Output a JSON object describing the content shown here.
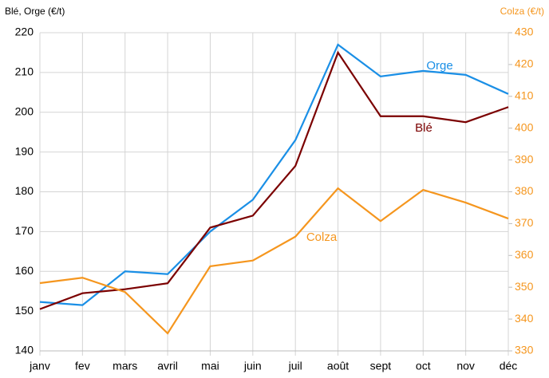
{
  "chart_data": {
    "type": "line",
    "y_label": "Blé, Orge (€/t)",
    "y2_label": "Colza (€/t)",
    "categories": [
      "janv",
      "fev",
      "mars",
      "avril",
      "mai",
      "juin",
      "juil",
      "août",
      "sept",
      "oct",
      "nov",
      "déc"
    ],
    "series": [
      {
        "name": "Orge",
        "color": "#1a8fe6",
        "values": [
          152.3,
          151.5,
          160,
          159.3,
          170,
          178,
          193,
          217,
          209,
          210.4,
          209.4,
          204.6
        ]
      },
      {
        "name": "Blé",
        "color": "#7b0000",
        "values": [
          150.5,
          154.5,
          155.5,
          157,
          171,
          174,
          186.5,
          215,
          199,
          199,
          197.5,
          201.3
        ]
      },
      {
        "name": "Colza",
        "color": "#f5961e",
        "axis": "y2",
        "values": [
          351.3,
          353,
          348.5,
          335.5,
          356.6,
          358.4,
          365.9,
          381.1,
          370.8,
          380.6,
          376.6,
          371.6
        ]
      }
    ],
    "ylim": [
      140,
      220
    ],
    "yticks": [
      140,
      150,
      160,
      170,
      180,
      190,
      200,
      210,
      220
    ],
    "y2lim": [
      330,
      430
    ],
    "y2ticks": [
      330,
      340,
      350,
      360,
      370,
      380,
      390,
      400,
      410,
      420,
      430
    ],
    "y2_color": "#f5961e",
    "grid": true
  }
}
